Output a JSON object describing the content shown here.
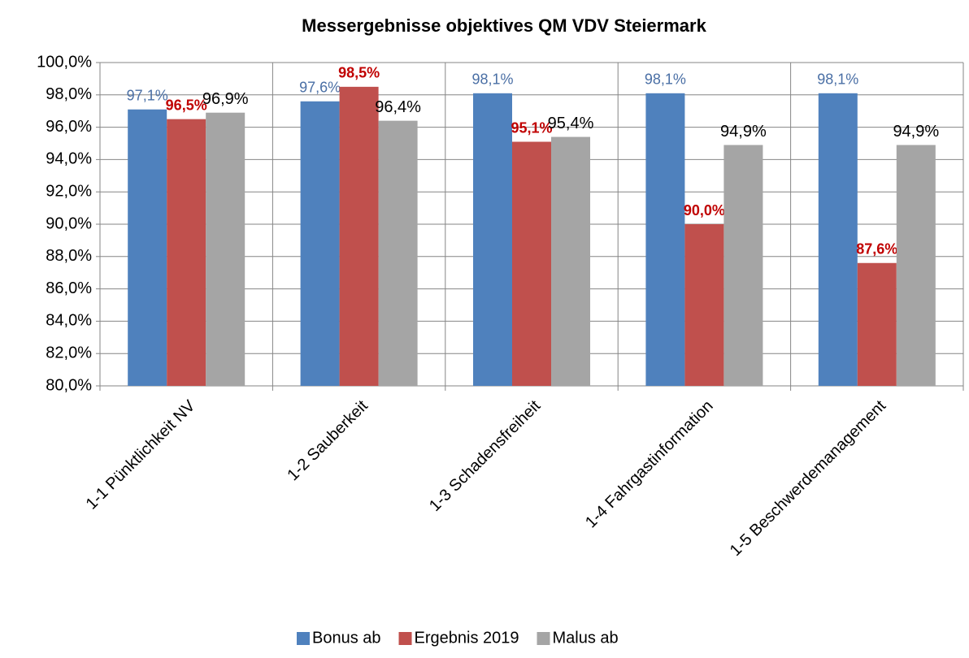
{
  "chart_data": {
    "type": "bar",
    "title": "Messergebnisse objektives QM VDV Steiermark",
    "categories": [
      "1-1 Pünktlichkeit NV",
      "1-2 Sauberkeit",
      "1-3 Schadensfreiheit",
      "1-4 Fahrgastinformation",
      "1-5 Beschwerdemanagement"
    ],
    "series": [
      {
        "name": "Bonus ab",
        "color": "#4f81bd",
        "label_color": "#4a6fa5",
        "label_bold": false,
        "values": [
          97.1,
          97.6,
          98.1,
          98.1,
          98.1
        ],
        "value_labels": [
          "97,1%",
          "97,6%",
          "98,1%",
          "98,1%",
          "98,1%"
        ]
      },
      {
        "name": "Ergebnis 2019",
        "color": "#c0504d",
        "label_color": "#c00000",
        "label_bold": true,
        "values": [
          96.5,
          98.5,
          95.1,
          90.0,
          87.6
        ],
        "value_labels": [
          "96,5%",
          "98,5%",
          "95,1%",
          "90,0%",
          "87,6%"
        ]
      },
      {
        "name": "Malus ab",
        "color": "#a5a5a5",
        "label_color": "#000000",
        "label_bold": false,
        "values": [
          96.9,
          96.4,
          95.4,
          94.9,
          94.9
        ],
        "value_labels": [
          "96,9%",
          "96,4%",
          "95,4%",
          "94,9%",
          "94,9%"
        ]
      }
    ],
    "ylim": [
      80,
      100
    ],
    "yticks": [
      {
        "value": 80,
        "label": "80,0%"
      },
      {
        "value": 82,
        "label": "82,0%"
      },
      {
        "value": 84,
        "label": "84,0%"
      },
      {
        "value": 86,
        "label": "86,0%"
      },
      {
        "value": 88,
        "label": "88,0%"
      },
      {
        "value": 90,
        "label": "90,0%"
      },
      {
        "value": 92,
        "label": "92,0%"
      },
      {
        "value": 94,
        "label": "94,0%"
      },
      {
        "value": 96,
        "label": "96,0%"
      },
      {
        "value": 98,
        "label": "98,0%"
      },
      {
        "value": 100,
        "label": "100,0%"
      }
    ],
    "grid": true,
    "legend": "bottom"
  }
}
